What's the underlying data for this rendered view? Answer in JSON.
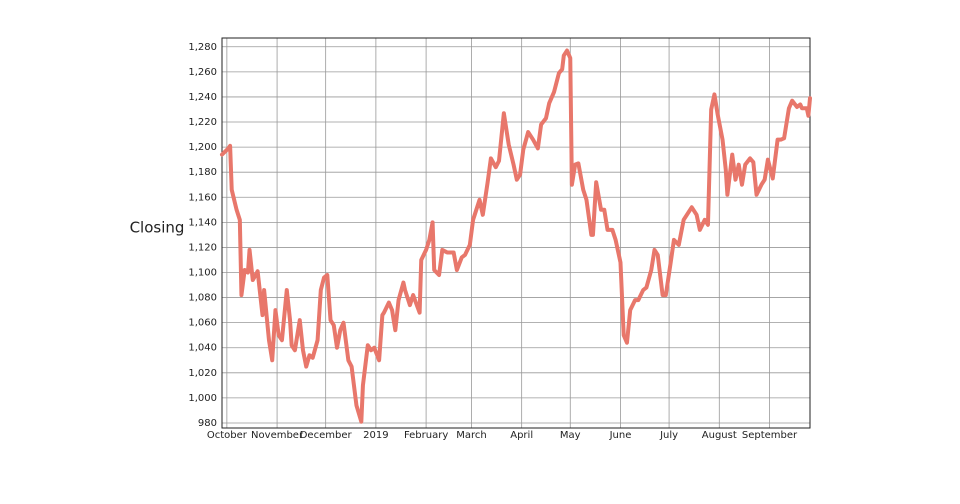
{
  "chart_data": {
    "type": "line",
    "y_label": "Closing",
    "x": [
      "2018-09-28",
      "2018-10-02",
      "2018-10-03",
      "2018-10-04",
      "2018-10-07",
      "2018-10-09",
      "2018-10-10",
      "2018-10-12",
      "2018-10-14",
      "2018-10-15",
      "2018-10-17",
      "2018-10-20",
      "2018-10-23",
      "2018-10-24",
      "2018-10-27",
      "2018-10-29",
      "2018-10-31",
      "2018-11-02",
      "2018-11-04",
      "2018-11-07",
      "2018-11-09",
      "2018-11-10",
      "2018-11-12",
      "2018-11-15",
      "2018-11-17",
      "2018-11-19",
      "2018-11-21",
      "2018-11-23",
      "2018-11-26",
      "2018-11-28",
      "2018-11-30",
      "2018-12-02",
      "2018-12-04",
      "2018-12-06",
      "2018-12-08",
      "2018-12-10",
      "2018-12-12",
      "2018-12-15",
      "2018-12-17",
      "2018-12-20",
      "2018-12-23",
      "2018-12-24",
      "2018-12-27",
      "2018-12-29",
      "2018-12-31",
      "2019-01-03",
      "2019-01-05",
      "2019-01-06",
      "2019-01-09",
      "2019-01-11",
      "2019-01-13",
      "2019-01-15",
      "2019-01-18",
      "2019-01-19",
      "2019-01-22",
      "2019-01-24",
      "2019-01-28",
      "2019-01-29",
      "2019-02-01",
      "2019-02-03",
      "2019-02-05",
      "2019-02-06",
      "2019-02-09",
      "2019-02-11",
      "2019-02-14",
      "2019-02-18",
      "2019-02-20",
      "2019-02-23",
      "2019-02-25",
      "2019-02-28",
      "2019-03-02",
      "2019-03-06",
      "2019-03-08",
      "2019-03-11",
      "2019-03-13",
      "2019-03-16",
      "2019-03-18",
      "2019-03-21",
      "2019-03-24",
      "2019-03-27",
      "2019-03-29",
      "2019-03-31",
      "2019-04-02",
      "2019-04-05",
      "2019-04-08",
      "2019-04-11",
      "2019-04-13",
      "2019-04-16",
      "2019-04-18",
      "2019-04-21",
      "2019-04-24",
      "2019-04-26",
      "2019-04-27",
      "2019-04-29",
      "2019-05-01",
      "2019-05-02",
      "2019-05-04",
      "2019-05-06",
      "2019-05-09",
      "2019-05-11",
      "2019-05-14",
      "2019-05-15",
      "2019-05-17",
      "2019-05-20",
      "2019-05-22",
      "2019-05-24",
      "2019-05-27",
      "2019-05-29",
      "2019-06-01",
      "2019-06-03",
      "2019-06-05",
      "2019-06-07",
      "2019-06-10",
      "2019-06-12",
      "2019-06-15",
      "2019-06-17",
      "2019-06-20",
      "2019-06-22",
      "2019-06-24",
      "2019-06-27",
      "2019-06-29",
      "2019-07-02",
      "2019-07-04",
      "2019-07-07",
      "2019-07-10",
      "2019-07-12",
      "2019-07-15",
      "2019-07-18",
      "2019-07-20",
      "2019-07-23",
      "2019-07-25",
      "2019-07-27",
      "2019-07-29",
      "2019-07-31",
      "2019-08-03",
      "2019-08-05",
      "2019-08-06",
      "2019-08-09",
      "2019-08-11",
      "2019-08-13",
      "2019-08-15",
      "2019-08-17",
      "2019-08-20",
      "2019-08-22",
      "2019-08-24",
      "2019-08-27",
      "2019-08-29",
      "2019-08-31",
      "2019-09-03",
      "2019-09-06",
      "2019-09-08",
      "2019-09-10",
      "2019-09-13",
      "2019-09-15",
      "2019-09-18",
      "2019-09-20",
      "2019-09-21",
      "2019-09-24",
      "2019-09-25",
      "2019-09-26"
    ],
    "series": [
      {
        "name": "Closing",
        "color": "#e8776b",
        "values": [
          1194,
          1199,
          1201,
          1166,
          1150,
          1142,
          1082,
          1102,
          1100,
          1118,
          1094,
          1101,
          1066,
          1086,
          1046,
          1030,
          1070,
          1050,
          1046,
          1086,
          1062,
          1042,
          1038,
          1062,
          1038,
          1025,
          1034,
          1032,
          1046,
          1086,
          1096,
          1098,
          1062,
          1058,
          1040,
          1054,
          1060,
          1030,
          1025,
          994,
          981,
          1010,
          1042,
          1038,
          1040,
          1030,
          1066,
          1068,
          1076,
          1070,
          1054,
          1078,
          1092,
          1086,
          1074,
          1082,
          1068,
          1110,
          1118,
          1126,
          1140,
          1102,
          1098,
          1118,
          1116,
          1116,
          1102,
          1112,
          1114,
          1122,
          1142,
          1158,
          1146,
          1172,
          1191,
          1184,
          1189,
          1227,
          1202,
          1186,
          1174,
          1178,
          1198,
          1212,
          1206,
          1199,
          1218,
          1223,
          1235,
          1244,
          1259,
          1262,
          1273,
          1277,
          1271,
          1170,
          1186,
          1187,
          1166,
          1158,
          1130,
          1130,
          1172,
          1150,
          1150,
          1134,
          1134,
          1126,
          1108,
          1050,
          1044,
          1070,
          1078,
          1078,
          1086,
          1088,
          1102,
          1118,
          1114,
          1082,
          1082,
          1108,
          1126,
          1122,
          1142,
          1146,
          1152,
          1146,
          1134,
          1142,
          1138,
          1230,
          1242,
          1226,
          1206,
          1182,
          1162,
          1194,
          1174,
          1186,
          1170,
          1186,
          1191,
          1188,
          1162,
          1170,
          1174,
          1190,
          1175,
          1206,
          1206,
          1207,
          1231,
          1237,
          1232,
          1234,
          1231,
          1231,
          1225,
          1239
        ]
      }
    ],
    "xlim": [
      "2018-09-28",
      "2019-09-26"
    ],
    "xticks": [
      {
        "value": "2018-10-01",
        "label": "October"
      },
      {
        "value": "2018-11-01",
        "label": "November"
      },
      {
        "value": "2018-12-01",
        "label": "December"
      },
      {
        "value": "2019-01-01",
        "label": "2019"
      },
      {
        "value": "2019-02-01",
        "label": "February"
      },
      {
        "value": "2019-03-01",
        "label": "March"
      },
      {
        "value": "2019-04-01",
        "label": "April"
      },
      {
        "value": "2019-05-01",
        "label": "May"
      },
      {
        "value": "2019-06-01",
        "label": "June"
      },
      {
        "value": "2019-07-01",
        "label": "July"
      },
      {
        "value": "2019-08-01",
        "label": "August"
      },
      {
        "value": "2019-09-01",
        "label": "September"
      }
    ],
    "ylim": [
      976,
      1287
    ],
    "yticks": [
      {
        "value": 980,
        "label": "980"
      },
      {
        "value": 1000,
        "label": "1,000"
      },
      {
        "value": 1020,
        "label": "1,020"
      },
      {
        "value": 1040,
        "label": "1,040"
      },
      {
        "value": 1060,
        "label": "1,060"
      },
      {
        "value": 1080,
        "label": "1,080"
      },
      {
        "value": 1100,
        "label": "1,100"
      },
      {
        "value": 1120,
        "label": "1,120"
      },
      {
        "value": 1140,
        "label": "1,140"
      },
      {
        "value": 1160,
        "label": "1,160"
      },
      {
        "value": 1180,
        "label": "1,180"
      },
      {
        "value": 1200,
        "label": "1,200"
      },
      {
        "value": 1220,
        "label": "1,220"
      },
      {
        "value": 1240,
        "label": "1,240"
      },
      {
        "value": 1260,
        "label": "1,260"
      },
      {
        "value": 1280,
        "label": "1,280"
      }
    ],
    "grid": true
  }
}
